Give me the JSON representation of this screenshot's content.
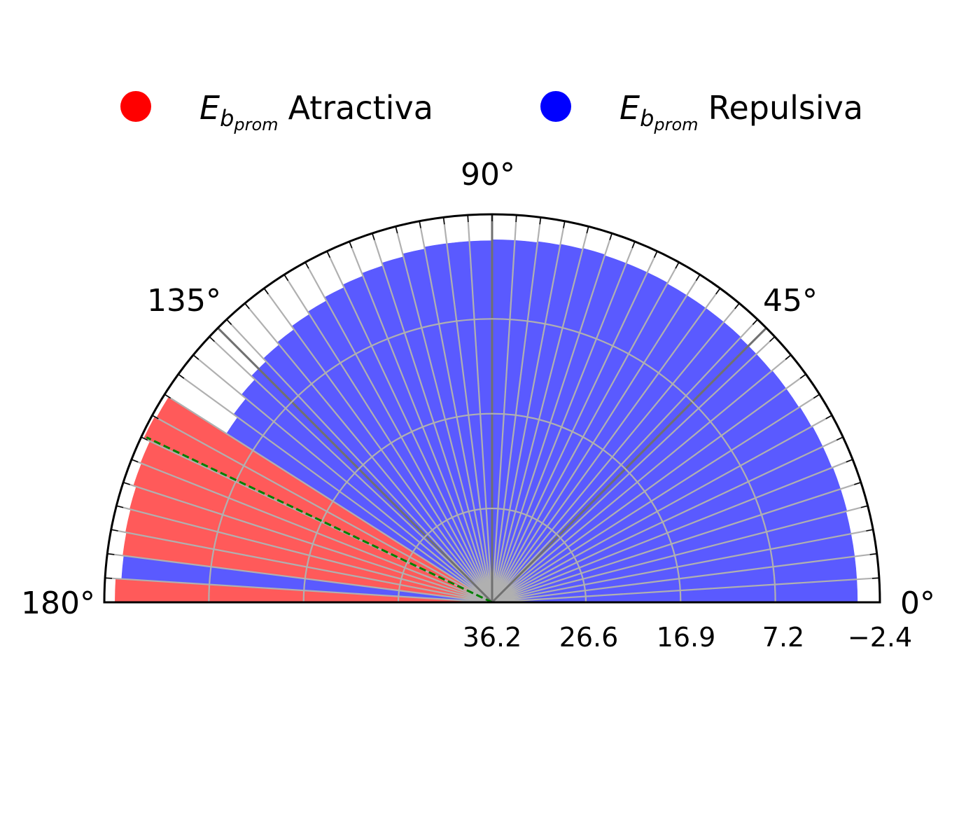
{
  "chart_data": {
    "type": "polar-bar",
    "angular_range_deg": [
      0,
      180
    ],
    "angular_ticks": [
      "0°",
      "45°",
      "90°",
      "135°",
      "180°"
    ],
    "radial_tick_labels": [
      "36.2",
      "26.6",
      "16.9",
      "7.2",
      "−2.4"
    ],
    "radial_ticks": [
      36.2,
      26.6,
      16.9,
      7.2,
      -2.4
    ],
    "radial_axis_inverted": true,
    "r_range": [
      36.2,
      -3.5
    ],
    "bin_width_deg": 3.6,
    "legend": {
      "placement": "top",
      "entries": [
        {
          "symbol": "E",
          "sub": "b",
          "subsub": "prom",
          "text": "Atractiva",
          "color": "#ff0000"
        },
        {
          "symbol": "E",
          "sub": "b",
          "subsub": "prom",
          "text": "Repulsiva",
          "color": "#0000ff"
        }
      ]
    },
    "series_colors": {
      "Atractiva": "#ff5a5a",
      "Repulsiva": "#5a5aff"
    },
    "reference_line_deg": 154.5,
    "reference_line_color": "#008000",
    "bins": [
      {
        "angle": 1.8,
        "value": -1.2,
        "type": "Repulsiva"
      },
      {
        "angle": 5.4,
        "value": -1.2,
        "type": "Repulsiva"
      },
      {
        "angle": 9.0,
        "value": -1.2,
        "type": "Repulsiva"
      },
      {
        "angle": 12.6,
        "value": -1.2,
        "type": "Repulsiva"
      },
      {
        "angle": 16.2,
        "value": -1.3,
        "type": "Repulsiva"
      },
      {
        "angle": 19.8,
        "value": -1.3,
        "type": "Repulsiva"
      },
      {
        "angle": 23.4,
        "value": -1.2,
        "type": "Repulsiva"
      },
      {
        "angle": 27.0,
        "value": -1.2,
        "type": "Repulsiva"
      },
      {
        "angle": 30.6,
        "value": -1.1,
        "type": "Repulsiva"
      },
      {
        "angle": 34.2,
        "value": -1.0,
        "type": "Repulsiva"
      },
      {
        "angle": 37.8,
        "value": -1.0,
        "type": "Repulsiva"
      },
      {
        "angle": 41.4,
        "value": -0.9,
        "type": "Repulsiva"
      },
      {
        "angle": 45.0,
        "value": -0.9,
        "type": "Repulsiva"
      },
      {
        "angle": 48.6,
        "value": -1.0,
        "type": "Repulsiva"
      },
      {
        "angle": 52.2,
        "value": -1.0,
        "type": "Repulsiva"
      },
      {
        "angle": 55.8,
        "value": -1.0,
        "type": "Repulsiva"
      },
      {
        "angle": 59.4,
        "value": -1.0,
        "type": "Repulsiva"
      },
      {
        "angle": 63.0,
        "value": -1.1,
        "type": "Repulsiva"
      },
      {
        "angle": 66.6,
        "value": -1.1,
        "type": "Repulsiva"
      },
      {
        "angle": 70.2,
        "value": -1.1,
        "type": "Repulsiva"
      },
      {
        "angle": 73.8,
        "value": -1.2,
        "type": "Repulsiva"
      },
      {
        "angle": 77.4,
        "value": -1.1,
        "type": "Repulsiva"
      },
      {
        "angle": 81.0,
        "value": -1.0,
        "type": "Repulsiva"
      },
      {
        "angle": 84.6,
        "value": -0.9,
        "type": "Repulsiva"
      },
      {
        "angle": 88.2,
        "value": -0.9,
        "type": "Repulsiva"
      },
      {
        "angle": 91.8,
        "value": -0.8,
        "type": "Repulsiva"
      },
      {
        "angle": 95.4,
        "value": -0.8,
        "type": "Repulsiva"
      },
      {
        "angle": 99.0,
        "value": -0.8,
        "type": "Repulsiva"
      },
      {
        "angle": 102.6,
        "value": -0.6,
        "type": "Repulsiva"
      },
      {
        "angle": 106.2,
        "value": -0.3,
        "type": "Repulsiva"
      },
      {
        "angle": 109.8,
        "value": 0.0,
        "type": "Repulsiva"
      },
      {
        "angle": 113.4,
        "value": 0.3,
        "type": "Repulsiva"
      },
      {
        "angle": 117.0,
        "value": 0.6,
        "type": "Repulsiva"
      },
      {
        "angle": 120.6,
        "value": 1.0,
        "type": "Repulsiva"
      },
      {
        "angle": 124.2,
        "value": 1.3,
        "type": "Repulsiva"
      },
      {
        "angle": 127.8,
        "value": 1.7,
        "type": "Repulsiva"
      },
      {
        "angle": 131.4,
        "value": 2.0,
        "type": "Repulsiva"
      },
      {
        "angle": 135.0,
        "value": 2.4,
        "type": "Repulsiva"
      },
      {
        "angle": 138.6,
        "value": 2.9,
        "type": "Repulsiva"
      },
      {
        "angle": 142.2,
        "value": 3.5,
        "type": "Repulsiva"
      },
      {
        "angle": 145.8,
        "value": 4.0,
        "type": "Repulsiva"
      },
      {
        "angle": 149.4,
        "value": -3.0,
        "type": "Atractiva"
      },
      {
        "angle": 153.0,
        "value": -3.2,
        "type": "Atractiva"
      },
      {
        "angle": 156.6,
        "value": -2.5,
        "type": "Atractiva"
      },
      {
        "angle": 160.2,
        "value": -2.4,
        "type": "Atractiva"
      },
      {
        "angle": 163.8,
        "value": -2.1,
        "type": "Atractiva"
      },
      {
        "angle": 167.4,
        "value": -2.0,
        "type": "Atractiva"
      },
      {
        "angle": 171.0,
        "value": -1.9,
        "type": "Atractiva"
      },
      {
        "angle": 174.6,
        "value": -1.8,
        "type": "Repulsiva"
      },
      {
        "angle": 178.2,
        "value": -2.4,
        "type": "Atractiva"
      }
    ]
  }
}
